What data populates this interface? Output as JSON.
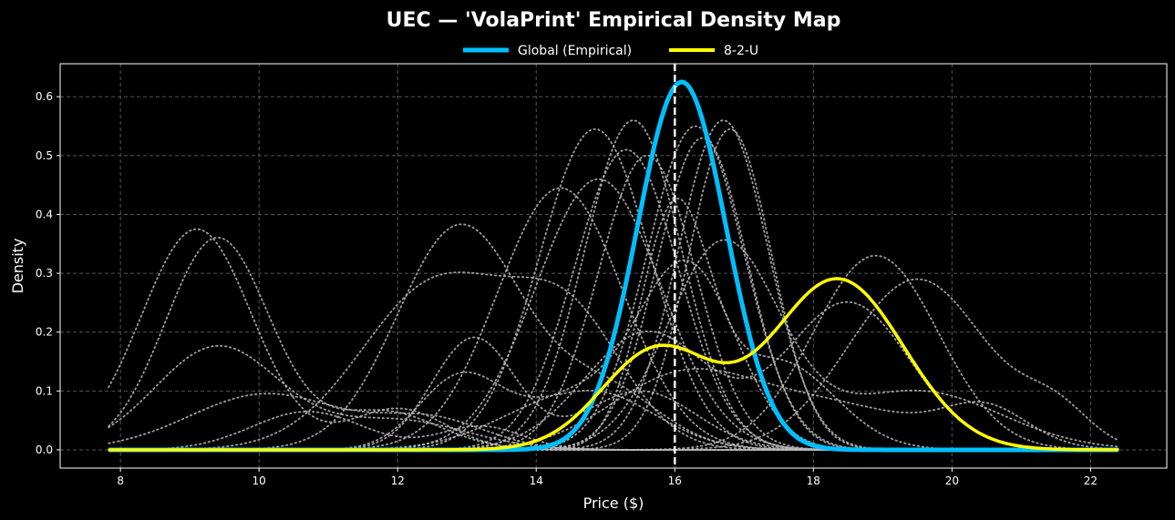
{
  "chart_data": {
    "type": "line",
    "title": "UEC — 'VolaPrint' Empirical Density Map",
    "xlabel": "Price ($)",
    "ylabel": "Density",
    "xlim": [
      7.13,
      23.1
    ],
    "ylim": [
      -0.031,
      0.656
    ],
    "x_domain": [
      7.83,
      22.4
    ],
    "xticks": [
      8,
      10,
      12,
      14,
      16,
      18,
      20,
      22
    ],
    "yticks": [
      0.0,
      0.1,
      0.2,
      0.3,
      0.4,
      0.5,
      0.6
    ],
    "grid": true,
    "legend_position": "top-center",
    "reference_line_x": 16.0,
    "series": [
      {
        "name": "Global (Empirical)",
        "color": "#00BFFF",
        "style": "solid",
        "components": [
          [
            0.625,
            16.1,
            0.64
          ]
        ]
      },
      {
        "name": "8-2-U",
        "color": "#FFFF00",
        "style": "solid",
        "components": [
          [
            0.17,
            15.75,
            0.8
          ],
          [
            0.29,
            18.35,
            0.95
          ]
        ]
      }
    ],
    "background_series": {
      "color": "#BBBBBB",
      "style": "dotted",
      "curves": [
        [
          [
            0.375,
            9.1,
            0.8
          ],
          [
            0.07,
            12.0,
            0.7
          ]
        ],
        [
          [
            0.36,
            9.4,
            0.75
          ],
          [
            0.065,
            11.8,
            0.8
          ]
        ],
        [
          [
            0.175,
            9.4,
            0.9
          ],
          [
            0.05,
            12.0,
            1.0
          ]
        ],
        [
          [
            0.095,
            10.1,
            1.1
          ],
          [
            0.05,
            12.5,
            0.8
          ]
        ],
        [
          [
            0.065,
            10.7,
            0.8
          ],
          [
            0.04,
            13.2,
            0.6
          ]
        ],
        [
          [
            0.38,
            12.9,
            0.9
          ],
          [
            0.1,
            15.0,
            0.8
          ]
        ],
        [
          [
            0.285,
            12.6,
            1.1
          ],
          [
            0.2,
            14.5,
            0.8
          ]
        ],
        [
          [
            0.19,
            13.1,
            0.6
          ],
          [
            0.1,
            15.5,
            0.8
          ]
        ],
        [
          [
            0.12,
            12.9,
            0.6
          ],
          [
            0.1,
            14.8,
            0.9
          ]
        ],
        [
          [
            0.445,
            14.35,
            0.9
          ]
        ],
        [
          [
            0.545,
            14.85,
            0.8
          ]
        ],
        [
          [
            0.46,
            14.9,
            0.9
          ]
        ],
        [
          [
            0.56,
            15.4,
            0.7
          ]
        ],
        [
          [
            0.51,
            15.3,
            0.75
          ]
        ],
        [
          [
            0.5,
            15.6,
            0.7
          ]
        ],
        [
          [
            0.55,
            16.3,
            0.7
          ]
        ],
        [
          [
            0.53,
            16.4,
            0.65
          ]
        ],
        [
          [
            0.56,
            16.7,
            0.65
          ]
        ],
        [
          [
            0.545,
            16.8,
            0.6
          ]
        ],
        [
          [
            0.4,
            16.0,
            0.5
          ],
          [
            0.15,
            17.5,
            0.8
          ]
        ],
        [
          [
            0.33,
            18.9,
            0.9
          ]
        ],
        [
          [
            0.29,
            19.5,
            1.0
          ],
          [
            0.06,
            21.5,
            0.5
          ]
        ],
        [
          [
            0.2,
            15.6,
            0.9
          ],
          [
            0.25,
            18.5,
            0.9
          ]
        ],
        [
          [
            0.1,
            16.0,
            1.0
          ],
          [
            0.06,
            20.5,
            0.6
          ],
          [
            0.08,
            18.0,
            1.5
          ]
        ],
        [
          [
            0.35,
            16.7,
            0.8
          ],
          [
            0.1,
            19.5,
            1.2
          ]
        ],
        [
          [
            0.09,
            14.5,
            1.0
          ],
          [
            0.3,
            16.2,
            0.7
          ]
        ]
      ]
    }
  }
}
